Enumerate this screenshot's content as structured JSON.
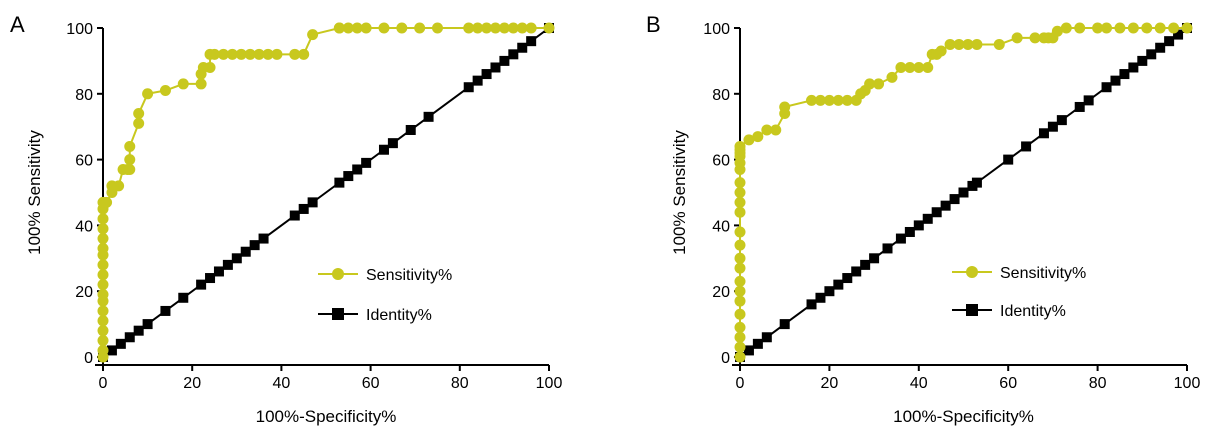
{
  "colors": {
    "sensitivity": "#c8c81e",
    "identity": "#000000",
    "axis": "#000000"
  },
  "chart_data": [
    {
      "type": "line",
      "panel_label": "A",
      "xlabel": "100%-Specificity%",
      "ylabel": "100% Sensitivity",
      "xlim": [
        0,
        100
      ],
      "ylim": [
        0,
        100
      ],
      "xticks": [
        "0",
        "20",
        "40",
        "60",
        "80",
        "100"
      ],
      "yticks": [
        "0",
        "20",
        "40",
        "60",
        "80",
        "100"
      ],
      "grid": false,
      "legend": "right",
      "series": [
        {
          "name": "Sensitivity%",
          "marker": "circle",
          "color": "#c8c81e",
          "x": [
            0,
            0,
            0,
            0,
            0,
            0,
            0,
            0,
            0,
            0,
            0,
            0,
            0,
            0,
            0,
            0,
            0,
            0,
            0.8,
            2,
            2,
            3.5,
            4.5,
            5.5,
            6,
            6,
            6,
            8,
            8,
            10,
            14,
            18,
            22,
            22,
            22.5,
            24,
            24,
            25,
            27,
            29,
            31,
            33,
            35,
            37,
            39,
            43,
            45,
            47,
            53,
            53,
            55,
            57,
            59,
            63,
            67,
            71,
            75,
            82,
            84,
            86,
            88,
            90,
            92,
            94,
            96,
            100
          ],
          "y": [
            0,
            2,
            5,
            8,
            11,
            14,
            17,
            19,
            22,
            25,
            28,
            31,
            33,
            36,
            39,
            42,
            45,
            47,
            47,
            50,
            52,
            52,
            57,
            57,
            57,
            60,
            64,
            71,
            74,
            80,
            81,
            83,
            83,
            86,
            88,
            88,
            92,
            92,
            92,
            92,
            92,
            92,
            92,
            92,
            92,
            92,
            92,
            98,
            100,
            100,
            100,
            100,
            100,
            100,
            100,
            100,
            100,
            100,
            100,
            100,
            100,
            100,
            100,
            100,
            100,
            100
          ]
        },
        {
          "name": "Identity%",
          "marker": "square",
          "color": "#000000",
          "x": [
            0,
            2,
            4,
            6,
            8,
            10,
            14,
            18,
            22,
            24,
            26,
            28,
            30,
            32,
            34,
            36,
            43,
            45,
            47,
            53,
            55,
            57,
            59,
            63,
            65,
            69,
            73,
            82,
            84,
            86,
            88,
            90,
            92,
            94,
            96,
            100
          ],
          "y": [
            0,
            2,
            4,
            6,
            8,
            10,
            14,
            18,
            22,
            24,
            26,
            28,
            30,
            32,
            34,
            36,
            43,
            45,
            47,
            53,
            55,
            57,
            59,
            63,
            65,
            69,
            73,
            82,
            84,
            86,
            88,
            90,
            92,
            94,
            96,
            100
          ]
        }
      ]
    },
    {
      "type": "line",
      "panel_label": "B",
      "xlabel": "100%-Specificity%",
      "ylabel": "100% Sensitivity",
      "xlim": [
        0,
        100
      ],
      "ylim": [
        0,
        100
      ],
      "xticks": [
        "0",
        "20",
        "40",
        "60",
        "80",
        "100"
      ],
      "yticks": [
        "0",
        "20",
        "40",
        "60",
        "80",
        "100"
      ],
      "grid": false,
      "legend": "right",
      "series": [
        {
          "name": "Sensitivity%",
          "marker": "circle",
          "color": "#c8c81e",
          "x": [
            0,
            0,
            0,
            0,
            0,
            0,
            0,
            0,
            0,
            0,
            0,
            0,
            0,
            0,
            0,
            0,
            0,
            0,
            0,
            0,
            0,
            0,
            2,
            4,
            6,
            8,
            10,
            10,
            16,
            18,
            20,
            22,
            24,
            26,
            27,
            28,
            29,
            31,
            34,
            36,
            38,
            40,
            42,
            43,
            44,
            45,
            47,
            49,
            51,
            53,
            58,
            62,
            66,
            68,
            69,
            70,
            71,
            73,
            76,
            80,
            82,
            85,
            88,
            91,
            94,
            97,
            100
          ],
          "y": [
            0,
            3,
            6,
            9,
            13,
            17,
            20,
            23,
            27,
            30,
            34,
            38,
            44,
            47,
            50,
            53,
            57,
            59,
            61,
            62,
            63,
            64,
            66,
            67,
            69,
            69,
            74,
            76,
            78,
            78,
            78,
            78,
            78,
            78,
            80,
            81,
            83,
            83,
            85,
            88,
            88,
            88,
            88,
            92,
            92,
            93,
            95,
            95,
            95,
            95,
            95,
            97,
            97,
            97,
            97,
            97,
            99,
            100,
            100,
            100,
            100,
            100,
            100,
            100,
            100,
            100,
            100
          ]
        },
        {
          "name": "Identity%",
          "marker": "square",
          "color": "#000000",
          "x": [
            0,
            2,
            4,
            6,
            10,
            16,
            18,
            20,
            22,
            24,
            26,
            28,
            30,
            33,
            36,
            38,
            40,
            42,
            44,
            46,
            48,
            50,
            52,
            53,
            60,
            64,
            68,
            70,
            72,
            76,
            78,
            82,
            84,
            86,
            88,
            90,
            92,
            94,
            96,
            98,
            100
          ],
          "y": [
            0,
            2,
            4,
            6,
            10,
            16,
            18,
            20,
            22,
            24,
            26,
            28,
            30,
            33,
            36,
            38,
            40,
            42,
            44,
            46,
            48,
            50,
            52,
            53,
            60,
            64,
            68,
            70,
            72,
            76,
            78,
            82,
            84,
            86,
            88,
            90,
            92,
            94,
            96,
            98,
            100
          ]
        }
      ]
    }
  ]
}
